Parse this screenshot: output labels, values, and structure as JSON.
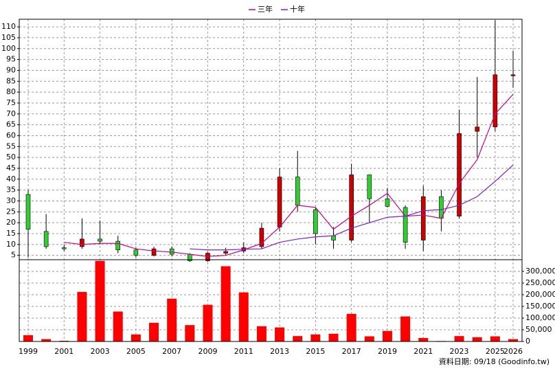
{
  "chart_data": {
    "type": "candlestick",
    "categories": [
      "1999",
      null,
      "2001",
      null,
      "2003",
      null,
      "2005",
      null,
      "2007",
      null,
      "2009",
      null,
      "2011",
      null,
      "2013",
      null,
      "2015",
      null,
      "2017",
      null,
      "2019",
      null,
      "2021",
      null,
      "2023",
      null,
      "2025",
      "2026"
    ],
    "open": [
      33,
      16,
      8.5,
      9,
      12.5,
      11.5,
      7.5,
      5,
      8,
      5.5,
      2.5,
      6,
      7,
      9,
      18,
      41,
      26,
      14,
      12,
      42,
      31,
      27,
      12,
      32,
      23,
      62,
      64,
      87.5
    ],
    "high": [
      35,
      24,
      10,
      22,
      21,
      14,
      8.5,
      9,
      9,
      6,
      6.5,
      8.5,
      11,
      20,
      45,
      53,
      27,
      18,
      47,
      42,
      36,
      28,
      37,
      35,
      72,
      87,
      113,
      99
    ],
    "low": [
      4,
      8,
      7,
      8,
      10,
      6,
      4,
      4.5,
      4.5,
      2,
      2,
      5,
      6,
      8,
      16,
      25,
      10,
      8,
      11,
      20,
      27,
      8,
      7,
      16,
      22,
      50,
      62,
      82
    ],
    "close": [
      17,
      9,
      8,
      12.5,
      11.5,
      7.5,
      5,
      8,
      5.5,
      2.5,
      6,
      6.8,
      8.5,
      17.5,
      41,
      28,
      15,
      12,
      42,
      31,
      27.5,
      11,
      32,
      22,
      61,
      64,
      88,
      88
    ],
    "up_color": "#cc0000",
    "down_color": "#33cc33",
    "series": [
      {
        "name": "三年",
        "color": "#cc0080",
        "values": [
          null,
          null,
          11,
          10,
          10.5,
          10.5,
          8,
          7,
          6.5,
          5.5,
          4.5,
          5,
          7.5,
          10.5,
          18,
          28,
          27,
          17,
          23,
          28,
          33.5,
          23,
          23.5,
          22,
          38,
          49,
          70,
          79
        ]
      },
      {
        "name": "十年",
        "color": "#7a1fd6",
        "values": [
          null,
          null,
          null,
          null,
          null,
          null,
          null,
          null,
          null,
          8,
          7.5,
          7.5,
          7.8,
          8,
          11,
          12.5,
          13.5,
          14,
          17.5,
          20,
          22.5,
          23,
          25.5,
          26,
          28,
          32,
          39,
          46.5
        ]
      }
    ],
    "ylim": [
      3,
      113.5
    ],
    "yticks": [
      5,
      10,
      15,
      20,
      25,
      30,
      35,
      40,
      45,
      50,
      55,
      60,
      65,
      70,
      75,
      80,
      85,
      90,
      95,
      100,
      105,
      110
    ],
    "volume": {
      "color": "#ff0000",
      "values": [
        27000,
        10000,
        3000,
        212000,
        345000,
        128000,
        30000,
        80000,
        183000,
        70000,
        157000,
        322000,
        210000,
        65000,
        60000,
        23000,
        30000,
        33000,
        118000,
        22000,
        45000,
        107000,
        15000,
        2000,
        23000,
        18000,
        22000,
        10000
      ],
      "ylim": [
        0,
        344000
      ],
      "yticks": [
        0,
        {
          "value": 50000,
          "label": "50,000"
        },
        {
          "value": 100000,
          "label": "100,000"
        },
        {
          "value": 150000,
          "label": "150,000"
        },
        {
          "value": 200000,
          "label": "200,000"
        },
        {
          "value": 250000,
          "label": "250,000"
        },
        {
          "value": 300000,
          "label": "300,000"
        }
      ]
    },
    "grid": true,
    "legend": "top",
    "note": "資料日期: 09/18  (Goodinfo.tw)"
  }
}
